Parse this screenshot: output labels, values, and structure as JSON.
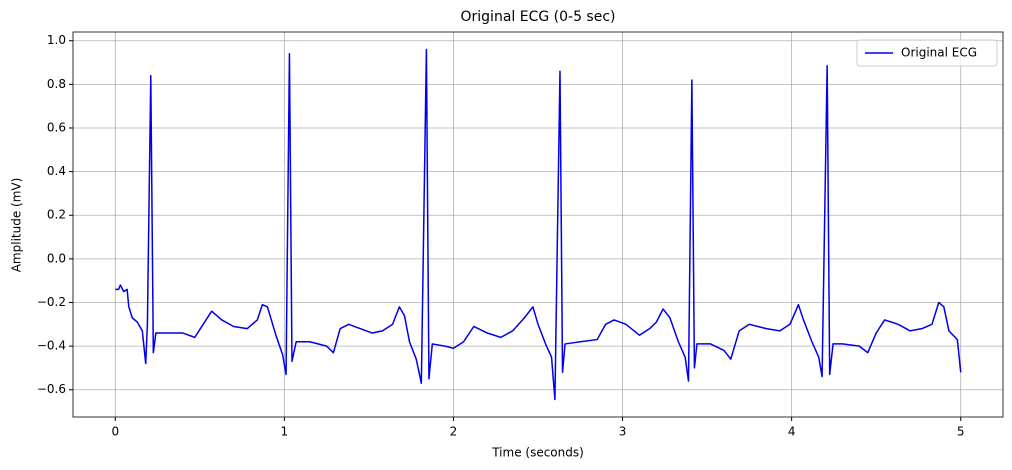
{
  "chart_data": {
    "type": "line",
    "title": "Original ECG (0-5 sec)",
    "xlabel": "Time (seconds)",
    "ylabel": "Amplitude (mV)",
    "x": [
      0.0,
      0.02,
      0.03,
      0.05,
      0.07,
      0.08,
      0.1,
      0.13,
      0.16,
      0.18,
      0.19,
      0.21,
      0.225,
      0.24,
      0.3,
      0.4,
      0.47,
      0.52,
      0.57,
      0.63,
      0.7,
      0.78,
      0.84,
      0.87,
      0.9,
      0.95,
      0.99,
      1.01,
      1.03,
      1.045,
      1.07,
      1.15,
      1.25,
      1.29,
      1.33,
      1.38,
      1.45,
      1.52,
      1.58,
      1.64,
      1.68,
      1.71,
      1.74,
      1.78,
      1.81,
      1.84,
      1.855,
      1.875,
      1.95,
      2.0,
      2.06,
      2.12,
      2.2,
      2.28,
      2.35,
      2.42,
      2.47,
      2.5,
      2.55,
      2.58,
      2.6,
      2.63,
      2.645,
      2.66,
      2.75,
      2.85,
      2.9,
      2.95,
      3.02,
      3.1,
      3.16,
      3.2,
      3.24,
      3.28,
      3.33,
      3.37,
      3.39,
      3.41,
      3.425,
      3.44,
      3.52,
      3.6,
      3.64,
      3.69,
      3.75,
      3.85,
      3.93,
      3.99,
      4.04,
      4.07,
      4.12,
      4.16,
      4.18,
      4.21,
      4.225,
      4.245,
      4.3,
      4.4,
      4.45,
      4.5,
      4.55,
      4.63,
      4.7,
      4.77,
      4.83,
      4.87,
      4.9,
      4.93,
      4.98,
      5.0
    ],
    "series": [
      {
        "name": "Original ECG",
        "color": "#0000ee",
        "values": [
          -0.14,
          -0.14,
          -0.12,
          -0.15,
          -0.14,
          -0.22,
          -0.27,
          -0.29,
          -0.33,
          -0.48,
          -0.3,
          0.84,
          -0.43,
          -0.34,
          -0.34,
          -0.34,
          -0.36,
          -0.3,
          -0.24,
          -0.28,
          -0.31,
          -0.32,
          -0.28,
          -0.21,
          -0.22,
          -0.35,
          -0.44,
          -0.53,
          0.94,
          -0.47,
          -0.38,
          -0.38,
          -0.4,
          -0.43,
          -0.32,
          -0.3,
          -0.32,
          -0.34,
          -0.33,
          -0.3,
          -0.22,
          -0.26,
          -0.38,
          -0.46,
          -0.57,
          0.96,
          -0.55,
          -0.39,
          -0.4,
          -0.41,
          -0.38,
          -0.31,
          -0.34,
          -0.36,
          -0.33,
          -0.27,
          -0.22,
          -0.3,
          -0.4,
          -0.45,
          -0.645,
          0.86,
          -0.52,
          -0.39,
          -0.38,
          -0.37,
          -0.3,
          -0.28,
          -0.3,
          -0.35,
          -0.32,
          -0.29,
          -0.23,
          -0.27,
          -0.38,
          -0.45,
          -0.56,
          0.82,
          -0.5,
          -0.39,
          -0.39,
          -0.42,
          -0.46,
          -0.33,
          -0.3,
          -0.32,
          -0.33,
          -0.3,
          -0.21,
          -0.28,
          -0.38,
          -0.45,
          -0.54,
          0.885,
          -0.53,
          -0.39,
          -0.39,
          -0.4,
          -0.43,
          -0.34,
          -0.28,
          -0.3,
          -0.33,
          -0.32,
          -0.3,
          -0.2,
          -0.22,
          -0.33,
          -0.37,
          -0.52
        ]
      }
    ],
    "xlim": [
      -0.25,
      5.25
    ],
    "ylim": [
      -0.725,
      1.04
    ],
    "xticks": [
      0,
      1,
      2,
      3,
      4,
      5
    ],
    "yticks": [
      {
        "value": -0.6,
        "label": "−0.6"
      },
      {
        "value": -0.4,
        "label": "−0.4"
      },
      {
        "value": -0.2,
        "label": "−0.2"
      },
      {
        "value": 0,
        "label": "0.0"
      },
      0.2,
      0.4,
      0.6,
      0.8,
      {
        "value": 1,
        "label": "1.0"
      }
    ],
    "grid": true,
    "legend": "upper right"
  }
}
